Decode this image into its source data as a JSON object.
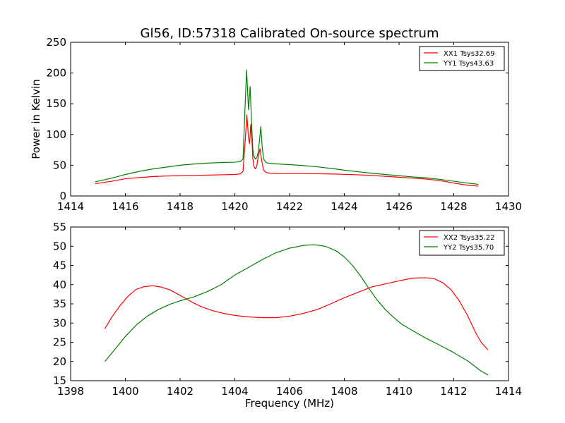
{
  "figure": {
    "title": "Gl56, ID:57318 Calibrated On-source spectrum"
  },
  "chart_data": [
    {
      "type": "line",
      "title": "Gl56, ID:57318 Calibrated On-source spectrum",
      "xlabel": "",
      "ylabel": "Power in Kelvin",
      "xlim": [
        1414,
        1430
      ],
      "ylim": [
        0,
        250
      ],
      "xticks": [
        "1414",
        "1416",
        "1418",
        "1420",
        "1422",
        "1424",
        "1426",
        "1428",
        "1430"
      ],
      "yticks": [
        "0",
        "50",
        "100",
        "150",
        "200",
        "250"
      ],
      "grid": false,
      "legend_position": "top-right",
      "series": [
        {
          "name": "XX1 Tsys32.69",
          "color": "#ff0000",
          "x": [
            1414.9,
            1415.5,
            1416.0,
            1416.5,
            1417.0,
            1417.5,
            1418.0,
            1418.5,
            1419.0,
            1419.5,
            1420.0,
            1420.2,
            1420.3,
            1420.38,
            1420.44,
            1420.5,
            1420.54,
            1420.58,
            1420.62,
            1420.66,
            1420.7,
            1420.75,
            1420.8,
            1420.86,
            1420.92,
            1420.98,
            1421.05,
            1421.15,
            1421.3,
            1421.6,
            1422.0,
            1422.5,
            1423.0,
            1423.5,
            1424.0,
            1424.5,
            1425.0,
            1425.5,
            1426.0,
            1426.5,
            1427.0,
            1427.5,
            1428.0,
            1428.5,
            1428.9
          ],
          "y": [
            20,
            24,
            28,
            30,
            31.5,
            32.5,
            33,
            33.5,
            34,
            34.5,
            35,
            36,
            40,
            90,
            132,
            95,
            85,
            116,
            95,
            60,
            48,
            44,
            48,
            65,
            77,
            58,
            42,
            38,
            37,
            36.5,
            36.5,
            36.5,
            36.2,
            35.8,
            35.2,
            34.5,
            33.5,
            32,
            30.5,
            29,
            27.5,
            25,
            21,
            17.5,
            16
          ]
        },
        {
          "name": "YY1 Tsys43.63",
          "color": "#008000",
          "x": [
            1414.9,
            1415.5,
            1416.0,
            1416.5,
            1417.0,
            1417.5,
            1418.0,
            1418.5,
            1419.0,
            1419.5,
            1420.0,
            1420.2,
            1420.3,
            1420.36,
            1420.43,
            1420.5,
            1420.56,
            1420.62,
            1420.66,
            1420.7,
            1420.75,
            1420.8,
            1420.85,
            1420.9,
            1420.95,
            1421.0,
            1421.05,
            1421.15,
            1421.3,
            1421.6,
            1422.0,
            1422.5,
            1423.0,
            1423.5,
            1424.0,
            1424.5,
            1425.0,
            1425.5,
            1426.0,
            1426.5,
            1427.0,
            1427.5,
            1428.0,
            1428.5,
            1428.9
          ],
          "y": [
            23,
            29,
            35,
            40,
            44,
            47,
            50,
            52,
            53.5,
            54.5,
            55,
            56,
            60,
            130,
            205,
            140,
            178,
            110,
            75,
            65,
            60,
            62,
            70,
            90,
            113,
            80,
            60,
            54,
            53,
            52,
            51,
            49.5,
            47.5,
            45,
            42,
            39.5,
            37,
            35,
            33,
            31,
            29.5,
            27,
            24,
            21,
            19
          ]
        }
      ]
    },
    {
      "type": "line",
      "title": "",
      "xlabel": "Frequency (MHz)",
      "ylabel": "",
      "xlim": [
        1398,
        1414
      ],
      "ylim": [
        15,
        55
      ],
      "xticks": [
        "1398",
        "1400",
        "1402",
        "1404",
        "1406",
        "1408",
        "1410",
        "1412",
        "1414"
      ],
      "yticks": [
        "15",
        "20",
        "25",
        "30",
        "35",
        "40",
        "45",
        "50",
        "55"
      ],
      "grid": false,
      "legend_position": "top-right",
      "series": [
        {
          "name": "XX2 Tsys35.22",
          "color": "#ff0000",
          "x": [
            1399.25,
            1399.5,
            1399.8,
            1400.1,
            1400.4,
            1400.7,
            1401.0,
            1401.3,
            1401.6,
            1401.9,
            1402.2,
            1402.5,
            1402.8,
            1403.2,
            1403.6,
            1404.0,
            1404.5,
            1405.0,
            1405.5,
            1406.0,
            1406.5,
            1407.0,
            1407.5,
            1408.0,
            1408.5,
            1409.0,
            1409.5,
            1410.0,
            1410.5,
            1411.0,
            1411.3,
            1411.6,
            1411.9,
            1412.2,
            1412.5,
            1412.8,
            1413.0,
            1413.25
          ],
          "y": [
            28.5,
            31.5,
            34.5,
            37,
            38.8,
            39.5,
            39.7,
            39.4,
            38.7,
            37.6,
            36.4,
            35.2,
            34.2,
            33.2,
            32.5,
            32.0,
            31.6,
            31.4,
            31.4,
            31.8,
            32.5,
            33.5,
            35.0,
            36.6,
            38.0,
            39.4,
            40.2,
            41.0,
            41.7,
            41.8,
            41.5,
            40.5,
            38.7,
            35.8,
            32,
            27.5,
            25.0,
            23
          ]
        },
        {
          "name": "YY2 Tsys35.70",
          "color": "#008000",
          "x": [
            1399.25,
            1399.6,
            1400.0,
            1400.4,
            1400.8,
            1401.2,
            1401.6,
            1402.0,
            1402.5,
            1403.0,
            1403.5,
            1404.0,
            1404.5,
            1405.0,
            1405.5,
            1406.0,
            1406.5,
            1406.9,
            1407.3,
            1407.7,
            1408.0,
            1408.3,
            1408.6,
            1408.9,
            1409.2,
            1409.5,
            1409.8,
            1410.1,
            1410.5,
            1411.0,
            1411.5,
            1412.0,
            1412.5,
            1413.0,
            1413.25
          ],
          "y": [
            20.0,
            23.0,
            26.5,
            29.5,
            31.8,
            33.5,
            34.8,
            35.8,
            36.8,
            38.2,
            40.0,
            42.5,
            44.5,
            46.5,
            48.3,
            49.5,
            50.2,
            50.4,
            50.0,
            48.8,
            47.2,
            45.0,
            42.2,
            39.0,
            36.0,
            33.5,
            31.5,
            29.7,
            28.0,
            26.0,
            24.2,
            22.3,
            20.2,
            17.5,
            16.5
          ]
        }
      ]
    }
  ]
}
